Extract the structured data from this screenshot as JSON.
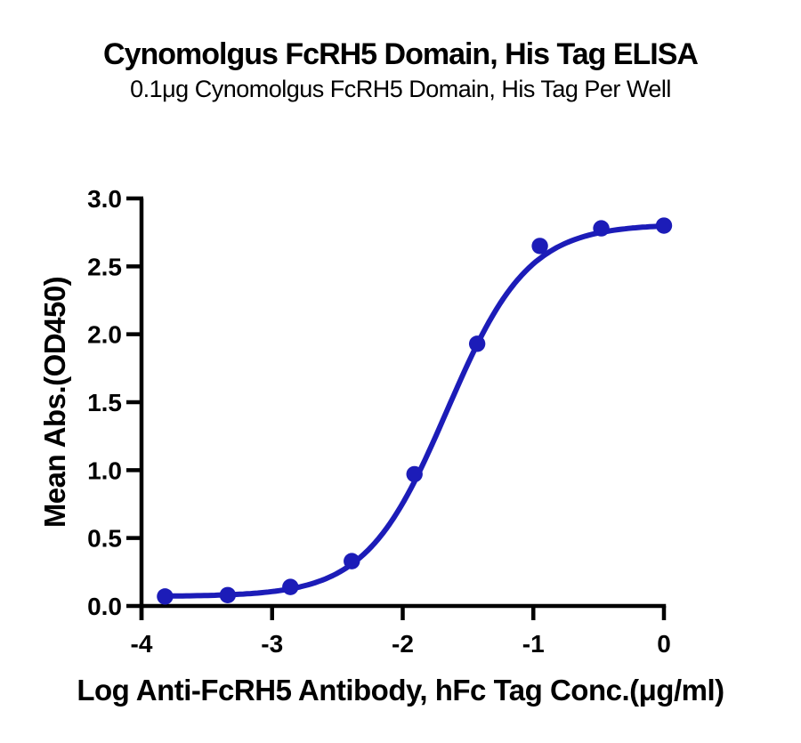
{
  "chart_data": {
    "type": "scatter",
    "title": "Cynomolgus FcRH5 Domain, His Tag ELISA",
    "subtitle": "0.1μg Cynomolgus FcRH5 Domain, His Tag Per Well",
    "xlabel": "Log Anti-FcRH5 Antibody, hFc Tag Conc.(μg/ml)",
    "ylabel": "Mean Abs.(OD450)",
    "xlim": [
      -4,
      0
    ],
    "ylim": [
      0,
      3
    ],
    "x_ticks": [
      -4,
      -3,
      -2,
      -1,
      0
    ],
    "x_tick_labels": [
      "-4",
      "-3",
      "-2",
      "-1",
      "0"
    ],
    "y_ticks": [
      0,
      0.5,
      1,
      1.5,
      2,
      2.5,
      3
    ],
    "y_tick_labels": [
      "0.0",
      "0.5",
      "1.0",
      "1.5",
      "2.0",
      "2.5",
      "3.0"
    ],
    "grid": false,
    "legend": "none",
    "series": [
      {
        "name": "Anti-FcRH5 Antibody, hFc Tag",
        "x": [
          -3.82,
          -3.34,
          -2.86,
          -2.39,
          -1.91,
          -1.43,
          -0.95,
          -0.48,
          0.0
        ],
        "y": [
          0.07,
          0.08,
          0.14,
          0.33,
          0.97,
          1.93,
          2.65,
          2.78,
          2.8
        ]
      }
    ],
    "fit_curve": {
      "model": "4PL-sigmoid",
      "bottom": 0.07,
      "top": 2.81,
      "logEC50": -1.66,
      "hillslope": 1.4,
      "x_range": [
        -3.82,
        0.0
      ]
    },
    "colors": {
      "curve": "#1c1cb8",
      "points": "#1c1cb8",
      "axis": "#000000",
      "text": "#000000",
      "background": "#ffffff"
    }
  }
}
